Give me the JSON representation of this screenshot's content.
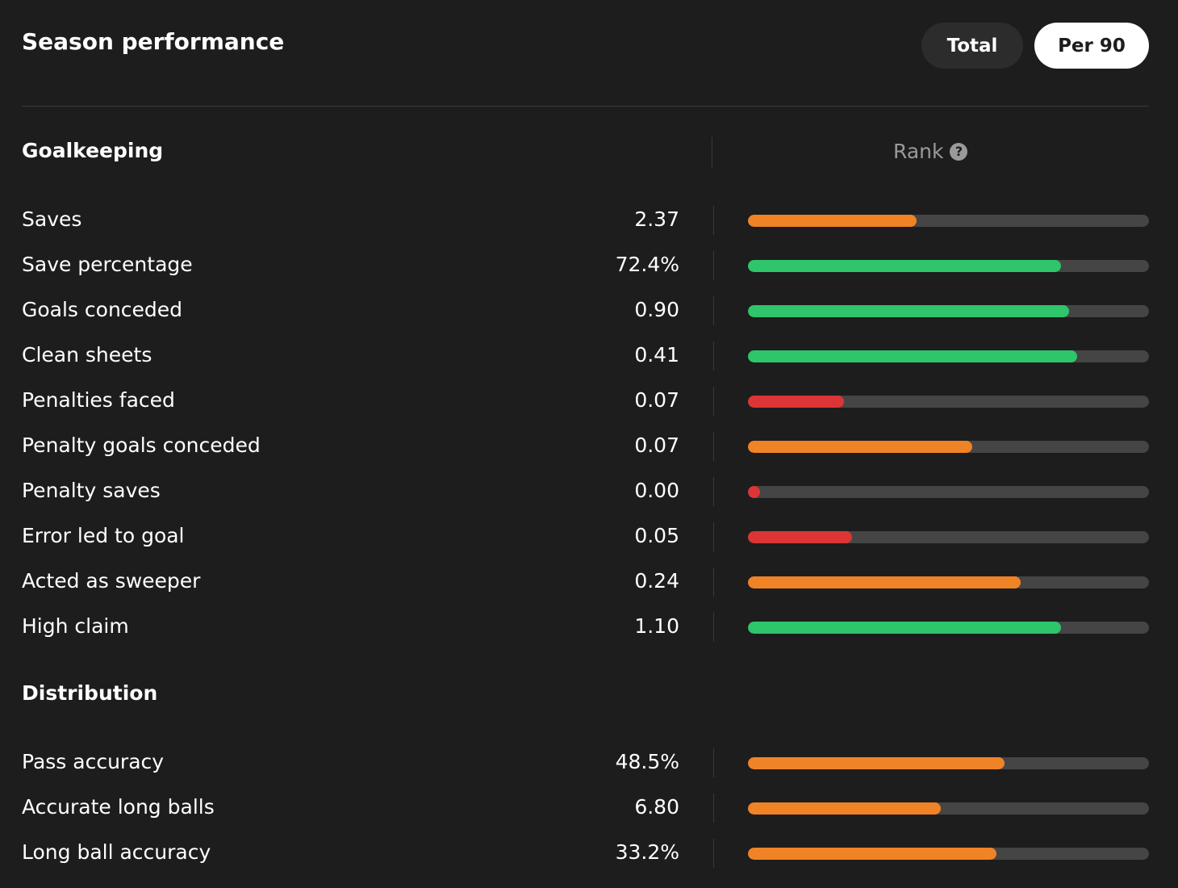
{
  "header": {
    "title": "Season performance",
    "toggle": {
      "total_label": "Total",
      "per90_label": "Per 90",
      "selected": "Per 90"
    }
  },
  "rank_header": {
    "label": "Rank",
    "help_glyph": "?"
  },
  "colors": {
    "orange": "#f08326",
    "green": "#2fc56a",
    "red": "#dd3535",
    "track": "#454545",
    "background": "#1d1d1d"
  },
  "sections": [
    {
      "title": "Goalkeeping",
      "stats": [
        {
          "label": "Saves",
          "value": "2.37",
          "rank_pct": 42,
          "rank_color": "orange"
        },
        {
          "label": "Save percentage",
          "value": "72.4%",
          "rank_pct": 78,
          "rank_color": "green"
        },
        {
          "label": "Goals conceded",
          "value": "0.90",
          "rank_pct": 80,
          "rank_color": "green"
        },
        {
          "label": "Clean sheets",
          "value": "0.41",
          "rank_pct": 82,
          "rank_color": "green"
        },
        {
          "label": "Penalties faced",
          "value": "0.07",
          "rank_pct": 24,
          "rank_color": "red"
        },
        {
          "label": "Penalty goals conceded",
          "value": "0.07",
          "rank_pct": 56,
          "rank_color": "orange"
        },
        {
          "label": "Penalty saves",
          "value": "0.00",
          "rank_pct": 3,
          "rank_color": "red"
        },
        {
          "label": "Error led to goal",
          "value": "0.05",
          "rank_pct": 26,
          "rank_color": "red"
        },
        {
          "label": "Acted as sweeper",
          "value": "0.24",
          "rank_pct": 68,
          "rank_color": "orange"
        },
        {
          "label": "High claim",
          "value": "1.10",
          "rank_pct": 78,
          "rank_color": "green"
        }
      ]
    },
    {
      "title": "Distribution",
      "stats": [
        {
          "label": "Pass accuracy",
          "value": "48.5%",
          "rank_pct": 64,
          "rank_color": "orange"
        },
        {
          "label": "Accurate long balls",
          "value": "6.80",
          "rank_pct": 48,
          "rank_color": "orange"
        },
        {
          "label": "Long ball accuracy",
          "value": "33.2%",
          "rank_pct": 62,
          "rank_color": "orange"
        }
      ]
    }
  ]
}
